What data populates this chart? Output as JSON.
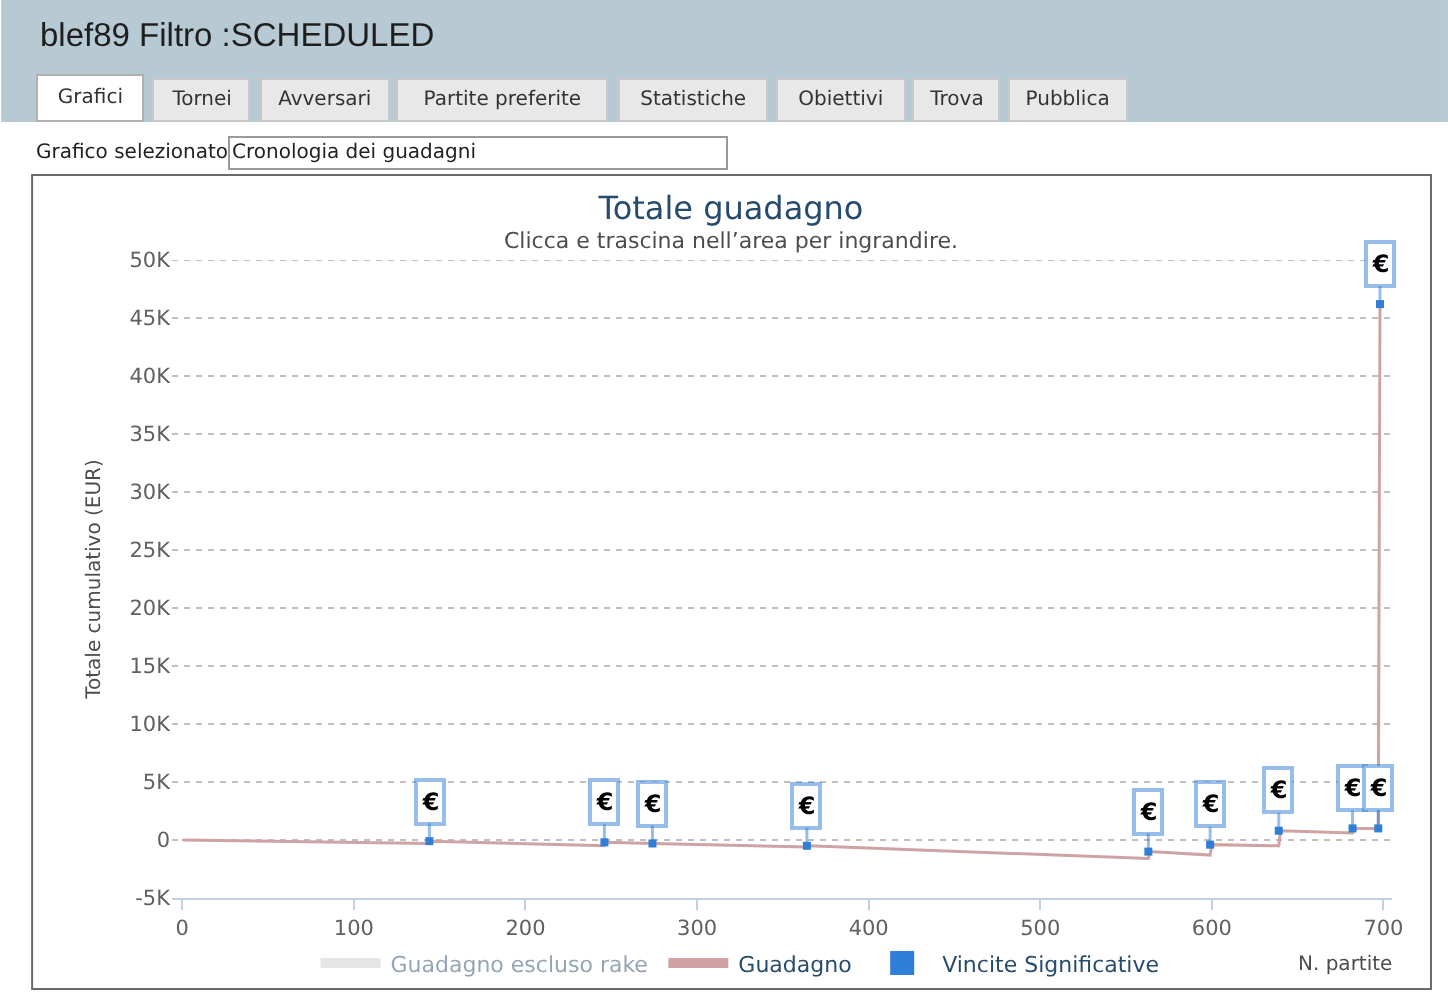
{
  "chart_data": {
    "type": "line",
    "title": "Totale guadagno",
    "subtitle": "Clicca e trascina nell’area per ingrandire.",
    "xlabel": "N. partite",
    "ylabel": "Totale cumulativo (EUR)",
    "annotations": [
      "blef89 Filtro :SCHEDULED",
      "Grafici",
      "Tornei",
      "Avversari",
      "Partite preferite",
      "Statistiche",
      "Obiettivi",
      "Trova",
      "Pubblica",
      "Grafico selezionato",
      "Cronologia dei guadagni"
    ],
    "series": [
      {
        "name": "Guadagno escluso rake",
        "color": "#cccccc"
      },
      {
        "name": "Guadagno",
        "color": "#cfa3a3",
        "x": [
          0,
          144,
          145,
          246,
          247,
          274,
          364,
          365,
          563,
          564,
          599,
          600,
          639,
          640,
          682,
          683,
          697,
          698
        ],
        "values": [
          0,
          -300,
          -100,
          -500,
          -200,
          -300,
          -600,
          -500,
          -1600,
          -1000,
          -1300,
          -400,
          -500,
          800,
          600,
          1000,
          1000,
          46200
        ]
      },
      {
        "name": "Vincite Significative",
        "type": "scatter",
        "marker": "square",
        "color": "#2f7ed8",
        "x": [
          144,
          246,
          274,
          364,
          563,
          599,
          639,
          682,
          697,
          698
        ],
        "values": [
          -100,
          -200,
          -300,
          -500,
          -1000,
          -400,
          800,
          1000,
          1000,
          46200
        ],
        "value_labels": [
          "€",
          "€",
          "€",
          "€",
          "€",
          "€",
          "€",
          "€",
          "€",
          "€"
        ]
      }
    ],
    "xlim": [
      -6,
      705
    ],
    "xticks": [
      0,
      100,
      200,
      300,
      400,
      500,
      600,
      700
    ],
    "ylim": [
      -5000,
      50000
    ],
    "yticks": [
      {
        "value": -5000,
        "label": "-5K"
      },
      0,
      {
        "value": 5000,
        "label": "5K"
      },
      {
        "value": 10000,
        "label": "10K"
      },
      {
        "value": 15000,
        "label": "15K"
      },
      {
        "value": 20000,
        "label": "20K"
      },
      {
        "value": 25000,
        "label": "25K"
      },
      {
        "value": 30000,
        "label": "30K"
      },
      {
        "value": 35000,
        "label": "35K"
      },
      {
        "value": 40000,
        "label": "40K"
      },
      {
        "value": 45000,
        "label": "45K"
      },
      {
        "value": 50000,
        "label": "50K"
      }
    ],
    "grid": "y",
    "legend": "bottom"
  }
}
